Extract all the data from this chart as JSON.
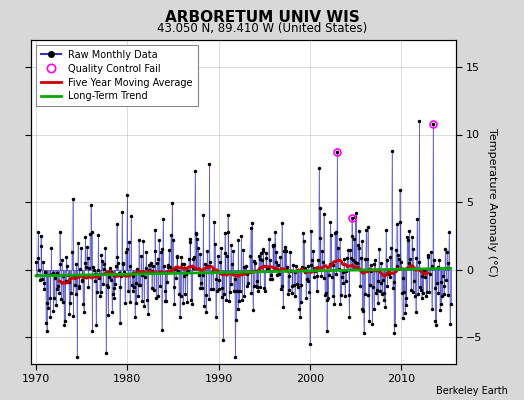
{
  "title": "ARBORETUM UNIV WIS",
  "subtitle": "43.050 N, 89.410 W (United States)",
  "ylabel_right": "Temperature Anomaly (°C)",
  "credit": "Berkeley Earth",
  "ylim": [
    -7,
    17
  ],
  "xlim": [
    1969.5,
    2016.0
  ],
  "yticks": [
    -5,
    0,
    5,
    10,
    15
  ],
  "xticks": [
    1970,
    1980,
    1990,
    2000,
    2010
  ],
  "bg_color": "#d8d8d8",
  "plot_bg_color": "#ffffff",
  "raw_line_color": "#3333bb",
  "raw_dot_color": "#000000",
  "ma_color": "#cc0000",
  "trend_color": "#00aa00",
  "qc_color": "#ff00ff",
  "start_year": 1970,
  "end_year": 2015,
  "seed": 42
}
